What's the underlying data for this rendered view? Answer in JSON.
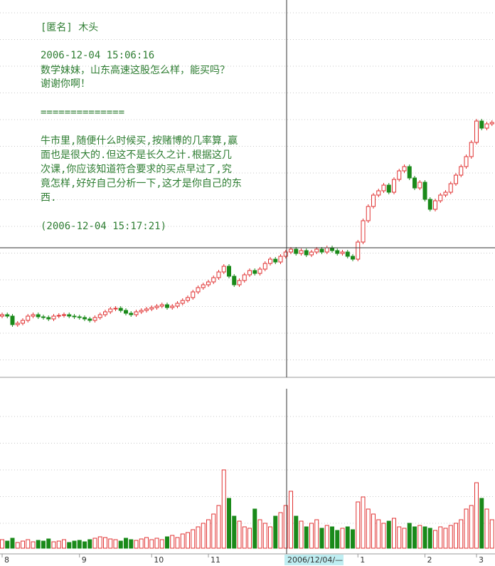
{
  "post": {
    "author": "[匿名] 木头",
    "question_time": "2006-12-04 15:06:16",
    "question": [
      "数学妹妹，山东高速这股怎么样，能买吗？",
      "谢谢你啊！"
    ],
    "separator": "==============",
    "answer": [
      "牛市里,随便什么时候买,按赌博的几率算,赢",
      "面也是很大的.但这不是长久之计.根据这几",
      "次课,你应该知道符合要求的买点早过了,究",
      "竟怎样,好好自己分析一下,这才是你自己的东",
      "西."
    ],
    "answer_time": "(2006-12-04 15:17:21)"
  },
  "chart_data": {
    "type": "candlestick",
    "categories": [
      "8",
      null,
      null,
      null,
      null,
      null,
      null,
      null,
      null,
      null,
      null,
      null,
      null,
      null,
      null,
      "9",
      null,
      null,
      null,
      null,
      null,
      null,
      null,
      null,
      null,
      null,
      null,
      null,
      null,
      "10",
      null,
      null,
      null,
      null,
      null,
      null,
      null,
      null,
      null,
      null,
      "11",
      null,
      null,
      null,
      null,
      null,
      null,
      null,
      null,
      null,
      null,
      null,
      null,
      null,
      null,
      null,
      null,
      null,
      null,
      null,
      null,
      null,
      null,
      null,
      null,
      null,
      null,
      null,
      null,
      "1",
      null,
      null,
      null,
      null,
      null,
      null,
      null,
      null,
      null,
      null,
      null,
      null,
      "2",
      null,
      null,
      null,
      null,
      null,
      null,
      null,
      null,
      null,
      "3",
      null,
      null,
      null
    ],
    "open": [
      0.86,
      0.88,
      0.86,
      0.74,
      0.76,
      0.8,
      0.86,
      0.88,
      0.85,
      0.84,
      0.82,
      0.86,
      0.87,
      0.88,
      0.86,
      0.85,
      0.84,
      0.82,
      0.8,
      0.84,
      0.88,
      0.92,
      0.96,
      0.97,
      0.94,
      0.9,
      0.88,
      0.92,
      0.94,
      0.96,
      0.98,
      1.0,
      1.02,
      0.98,
      1.0,
      1.04,
      1.08,
      1.12,
      1.2,
      1.26,
      1.3,
      1.34,
      1.4,
      1.48,
      1.56,
      1.42,
      1.3,
      1.36,
      1.44,
      1.5,
      1.46,
      1.52,
      1.6,
      1.66,
      1.62,
      1.7,
      1.76,
      1.8,
      1.74,
      1.78,
      1.72,
      1.76,
      1.8,
      1.76,
      1.82,
      1.78,
      1.74,
      1.76,
      1.7,
      1.66,
      1.9,
      2.2,
      2.4,
      2.56,
      2.62,
      2.7,
      2.6,
      2.78,
      2.9,
      2.96,
      2.8,
      2.66,
      2.74,
      2.5,
      2.36,
      2.48,
      2.56,
      2.6,
      2.72,
      2.84,
      2.96,
      3.1,
      3.3,
      3.6,
      3.5,
      3.56
    ],
    "high": [
      0.91,
      0.91,
      0.89,
      0.79,
      0.83,
      0.89,
      0.91,
      0.91,
      0.88,
      0.87,
      0.89,
      0.9,
      0.91,
      0.91,
      0.89,
      0.88,
      0.87,
      0.85,
      0.87,
      0.91,
      0.95,
      0.99,
      1.0,
      1.0,
      0.97,
      0.93,
      0.95,
      0.97,
      0.99,
      1.01,
      1.03,
      1.05,
      1.05,
      1.03,
      1.07,
      1.11,
      1.15,
      1.23,
      1.29,
      1.33,
      1.37,
      1.43,
      1.51,
      1.59,
      1.59,
      1.45,
      1.39,
      1.47,
      1.53,
      1.53,
      1.55,
      1.63,
      1.69,
      1.69,
      1.73,
      1.79,
      1.83,
      1.83,
      1.81,
      1.81,
      1.79,
      1.83,
      1.83,
      1.85,
      1.85,
      1.81,
      1.79,
      1.79,
      1.73,
      1.93,
      2.23,
      2.43,
      2.59,
      2.65,
      2.73,
      2.73,
      2.81,
      2.93,
      2.99,
      2.99,
      2.83,
      2.77,
      2.77,
      2.53,
      2.51,
      2.59,
      2.63,
      2.75,
      2.87,
      2.99,
      3.13,
      3.33,
      3.63,
      3.63,
      3.59,
      3.61
    ],
    "low": [
      0.83,
      0.83,
      0.71,
      0.71,
      0.73,
      0.77,
      0.83,
      0.82,
      0.81,
      0.79,
      0.79,
      0.83,
      0.84,
      0.83,
      0.82,
      0.81,
      0.79,
      0.77,
      0.77,
      0.81,
      0.85,
      0.89,
      0.93,
      0.91,
      0.87,
      0.85,
      0.85,
      0.89,
      0.91,
      0.93,
      0.95,
      0.97,
      0.95,
      0.95,
      0.97,
      1.01,
      1.05,
      1.09,
      1.17,
      1.23,
      1.27,
      1.31,
      1.37,
      1.45,
      1.39,
      1.27,
      1.27,
      1.33,
      1.41,
      1.43,
      1.43,
      1.49,
      1.57,
      1.59,
      1.59,
      1.67,
      1.73,
      1.71,
      1.71,
      1.69,
      1.69,
      1.73,
      1.73,
      1.73,
      1.75,
      1.71,
      1.71,
      1.67,
      1.63,
      1.63,
      1.87,
      2.17,
      2.37,
      2.53,
      2.59,
      2.57,
      2.57,
      2.75,
      2.87,
      2.77,
      2.63,
      2.63,
      2.47,
      2.33,
      2.33,
      2.45,
      2.53,
      2.57,
      2.69,
      2.81,
      2.93,
      3.07,
      3.27,
      3.47,
      3.47,
      3.53
    ],
    "close": [
      0.88,
      0.86,
      0.74,
      0.76,
      0.8,
      0.86,
      0.88,
      0.85,
      0.84,
      0.82,
      0.86,
      0.87,
      0.88,
      0.86,
      0.85,
      0.84,
      0.82,
      0.8,
      0.84,
      0.88,
      0.92,
      0.96,
      0.97,
      0.94,
      0.9,
      0.88,
      0.92,
      0.94,
      0.96,
      0.98,
      1.0,
      1.02,
      0.98,
      1.0,
      1.04,
      1.08,
      1.12,
      1.2,
      1.26,
      1.3,
      1.34,
      1.4,
      1.48,
      1.56,
      1.42,
      1.3,
      1.36,
      1.44,
      1.5,
      1.46,
      1.52,
      1.6,
      1.66,
      1.62,
      1.7,
      1.76,
      1.8,
      1.74,
      1.78,
      1.72,
      1.76,
      1.8,
      1.76,
      1.82,
      1.78,
      1.74,
      1.76,
      1.7,
      1.66,
      1.9,
      2.2,
      2.4,
      2.56,
      2.62,
      2.7,
      2.6,
      2.78,
      2.9,
      2.96,
      2.8,
      2.66,
      2.74,
      2.5,
      2.36,
      2.48,
      2.56,
      2.6,
      2.72,
      2.84,
      2.96,
      3.1,
      3.3,
      3.6,
      3.5,
      3.56,
      3.58
    ],
    "volume": [
      12,
      10,
      14,
      8,
      10,
      12,
      9,
      11,
      10,
      13,
      9,
      10,
      12,
      8,
      10,
      11,
      9,
      12,
      14,
      16,
      15,
      13,
      12,
      10,
      14,
      12,
      11,
      13,
      15,
      12,
      14,
      12,
      16,
      18,
      15,
      20,
      22,
      26,
      30,
      35,
      40,
      48,
      60,
      110,
      70,
      45,
      38,
      30,
      28,
      55,
      40,
      35,
      30,
      45,
      50,
      60,
      80,
      45,
      38,
      30,
      35,
      40,
      28,
      32,
      30,
      25,
      28,
      30,
      26,
      65,
      72,
      55,
      48,
      40,
      35,
      38,
      42,
      30,
      28,
      35,
      30,
      32,
      30,
      28,
      25,
      30,
      28,
      32,
      35,
      40,
      55,
      60,
      92,
      70,
      55,
      40
    ],
    "ylim": [
      0,
      5.3
    ],
    "volume_lim": [
      0,
      224
    ],
    "up_color": "#e03030",
    "down_color": "#1a8a1a",
    "crosshair_label": "2006/12/04/—"
  }
}
